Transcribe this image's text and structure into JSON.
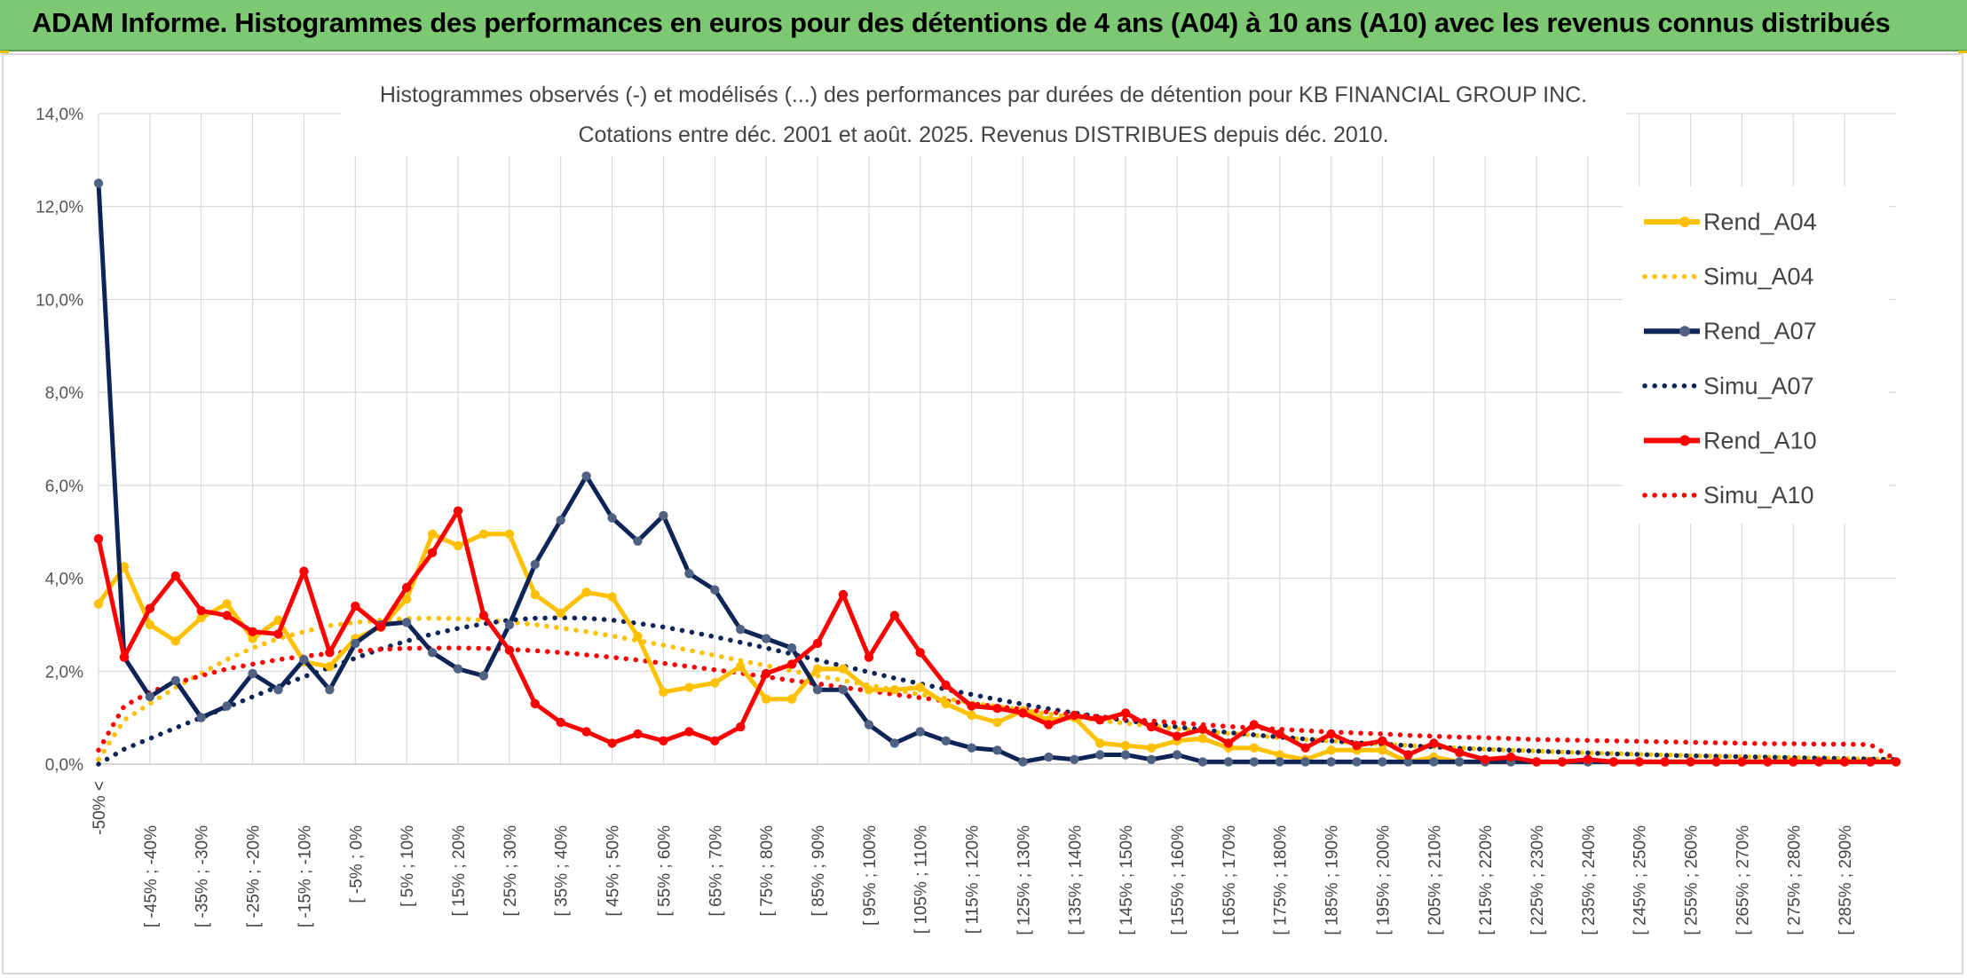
{
  "banner": {
    "title": "ADAM Informe. Histogrammes des performances en euros pour des détentions de 4 ans (A04) à 10 ans (A10) avec les revenus connus distribués"
  },
  "chart_data": {
    "type": "line",
    "title": "Histogrammes observés (-) et modélisés (...) des performances par durées de détention pour KB FINANCIAL GROUP INC.",
    "subtitle": "Cotations entre déc. 2001 et août. 2025. Revenus DISTRIBUES depuis déc. 2010.",
    "ylim": [
      0,
      14
    ],
    "yticks": [
      "0,0%",
      "2,0%",
      "4,0%",
      "6,0%",
      "8,0%",
      "10,0%",
      "12,0%",
      "14,0%"
    ],
    "x_labels": [
      "-50% <",
      "[ -45% ; -40%",
      "[ -35% ; -30%",
      "[ -25% ; -20%",
      "[ -15% ; -10%",
      "[ -5% ; 0%",
      "[ 5% ; 10%",
      "[ 15% ; 20%",
      "[ 25% ; 30%",
      "[ 35% ; 40%",
      "[ 45% ; 50%",
      "[ 55% ; 60%",
      "[ 65% ; 70%",
      "[ 75% ; 80%",
      "[ 85% ; 90%",
      "[ 95% ; 100%",
      "[ 105% ; 110%",
      "[ 115% ; 120%",
      "[ 125% ; 130%",
      "[ 135% ; 140%",
      "[ 145% ; 150%",
      "[ 155% ; 160%",
      "[ 165% ; 170%",
      "[ 175% ; 180%",
      "[ 185% ; 190%",
      "[ 195% ; 200%",
      "[ 205% ; 210%",
      "[ 215% ; 220%",
      "[ 225% ; 230%",
      "[ 235% ; 240%",
      "[ 245% ; 250%",
      "[ 255% ; 260%",
      "[ 265% ; 270%",
      "[ 275% ; 280%",
      "[ 285% ; 290%"
    ],
    "legend_position": "right",
    "grid": true,
    "series": [
      {
        "name": "Rend_A04",
        "style": "solid",
        "color": "#ffc000",
        "values": [
          3.45,
          4.25,
          3.0,
          2.65,
          3.15,
          3.45,
          2.7,
          3.1,
          2.2,
          2.1,
          2.7,
          2.95,
          3.55,
          4.95,
          4.7,
          4.95,
          4.95,
          3.65,
          3.25,
          3.7,
          3.6,
          2.75,
          1.55,
          1.65,
          1.75,
          2.1,
          1.4,
          1.4,
          2.05,
          2.05,
          1.6,
          1.6,
          1.65,
          1.3,
          1.05,
          0.9,
          1.15,
          0.95,
          1.0,
          0.45,
          0.4,
          0.35,
          0.5,
          0.55,
          0.35,
          0.35,
          0.2,
          0.1,
          0.3,
          0.3,
          0.3,
          0.05,
          0.15,
          0.05,
          0.05,
          0.05,
          0.05,
          0.05,
          0.05,
          0.05,
          0.05,
          0.05,
          0.05,
          0.05,
          0.05,
          0.05,
          0.05,
          0.05,
          0.05,
          0.05,
          0.05
        ]
      },
      {
        "name": "Simu_A04",
        "style": "dotted",
        "color": "#ffc000",
        "values": [
          0.1,
          0.95,
          1.3,
          1.65,
          1.95,
          2.25,
          2.5,
          2.7,
          2.85,
          2.98,
          3.05,
          3.1,
          3.13,
          3.14,
          3.13,
          3.1,
          3.06,
          3.0,
          2.93,
          2.85,
          2.76,
          2.66,
          2.56,
          2.45,
          2.34,
          2.23,
          2.12,
          2.01,
          1.9,
          1.8,
          1.7,
          1.6,
          1.5,
          1.41,
          1.32,
          1.24,
          1.16,
          1.08,
          1.01,
          0.94,
          0.88,
          0.82,
          0.76,
          0.71,
          0.66,
          0.62,
          0.57,
          0.53,
          0.5,
          0.46,
          0.43,
          0.4,
          0.37,
          0.35,
          0.32,
          0.3,
          0.28,
          0.26,
          0.24,
          0.23,
          0.21,
          0.2,
          0.18,
          0.17,
          0.16,
          0.15,
          0.14,
          0.13,
          0.12,
          0.11,
          0.1
        ]
      },
      {
        "name": "Rend_A07",
        "style": "solid",
        "color": "#0f2456",
        "values": [
          12.5,
          2.3,
          1.45,
          1.8,
          1.0,
          1.25,
          1.95,
          1.6,
          2.25,
          1.6,
          2.6,
          3.0,
          3.05,
          2.4,
          2.05,
          1.9,
          3.0,
          4.3,
          5.25,
          6.2,
          5.3,
          4.8,
          5.35,
          4.1,
          3.75,
          2.9,
          2.7,
          2.5,
          1.6,
          1.6,
          0.85,
          0.45,
          0.7,
          0.5,
          0.35,
          0.3,
          0.05,
          0.15,
          0.1,
          0.2,
          0.2,
          0.1,
          0.2,
          0.05,
          0.05,
          0.05,
          0.05,
          0.05,
          0.05,
          0.05,
          0.05,
          0.05,
          0.05,
          0.05,
          0.05,
          0.05,
          0.05,
          0.05,
          0.05,
          0.05,
          0.05,
          0.05,
          0.05,
          0.05,
          0.05,
          0.05,
          0.05,
          0.05,
          0.05,
          0.05,
          0.05
        ]
      },
      {
        "name": "Simu_A07",
        "style": "dotted",
        "color": "#0f2456",
        "values": [
          0.0,
          0.32,
          0.55,
          0.78,
          1.0,
          1.22,
          1.45,
          1.67,
          1.88,
          2.08,
          2.28,
          2.48,
          2.65,
          2.8,
          2.92,
          3.02,
          3.1,
          3.14,
          3.15,
          3.14,
          3.1,
          3.03,
          2.95,
          2.85,
          2.74,
          2.62,
          2.5,
          2.37,
          2.24,
          2.11,
          1.98,
          1.85,
          1.73,
          1.61,
          1.5,
          1.39,
          1.29,
          1.19,
          1.1,
          1.02,
          0.94,
          0.87,
          0.8,
          0.74,
          0.68,
          0.63,
          0.58,
          0.54,
          0.5,
          0.46,
          0.43,
          0.4,
          0.37,
          0.34,
          0.32,
          0.3,
          0.28,
          0.26,
          0.24,
          0.22,
          0.21,
          0.19,
          0.18,
          0.17,
          0.16,
          0.15,
          0.14,
          0.13,
          0.12,
          0.11,
          0.1
        ]
      },
      {
        "name": "Rend_A10",
        "style": "solid",
        "color": "#ff0000",
        "values": [
          4.85,
          2.3,
          3.35,
          4.05,
          3.3,
          3.2,
          2.85,
          2.8,
          4.15,
          2.4,
          3.4,
          2.95,
          3.8,
          4.55,
          5.45,
          3.2,
          2.45,
          1.3,
          0.9,
          0.7,
          0.45,
          0.65,
          0.5,
          0.7,
          0.5,
          0.8,
          1.95,
          2.15,
          2.6,
          3.65,
          2.3,
          3.2,
          2.4,
          1.7,
          1.25,
          1.2,
          1.1,
          0.85,
          1.05,
          0.95,
          1.1,
          0.8,
          0.6,
          0.75,
          0.45,
          0.85,
          0.65,
          0.35,
          0.65,
          0.4,
          0.5,
          0.2,
          0.45,
          0.25,
          0.1,
          0.15,
          0.05,
          0.05,
          0.1,
          0.05,
          0.05,
          0.05,
          0.05,
          0.05,
          0.05,
          0.05,
          0.05,
          0.05,
          0.05,
          0.05,
          0.05
        ]
      },
      {
        "name": "Simu_A10",
        "style": "dotted",
        "color": "#ff0000",
        "values": [
          0.3,
          1.25,
          1.55,
          1.75,
          1.9,
          2.05,
          2.15,
          2.25,
          2.32,
          2.38,
          2.43,
          2.47,
          2.49,
          2.5,
          2.5,
          2.49,
          2.47,
          2.44,
          2.4,
          2.35,
          2.3,
          2.24,
          2.17,
          2.1,
          2.03,
          1.96,
          1.88,
          1.8,
          1.73,
          1.65,
          1.58,
          1.5,
          1.43,
          1.36,
          1.3,
          1.24,
          1.18,
          1.12,
          1.07,
          1.02,
          0.97,
          0.93,
          0.89,
          0.85,
          0.81,
          0.78,
          0.75,
          0.72,
          0.69,
          0.67,
          0.65,
          0.62,
          0.6,
          0.58,
          0.57,
          0.55,
          0.53,
          0.52,
          0.51,
          0.5,
          0.49,
          0.48,
          0.47,
          0.46,
          0.45,
          0.44,
          0.44,
          0.43,
          0.43,
          0.42,
          0.1
        ]
      }
    ]
  }
}
